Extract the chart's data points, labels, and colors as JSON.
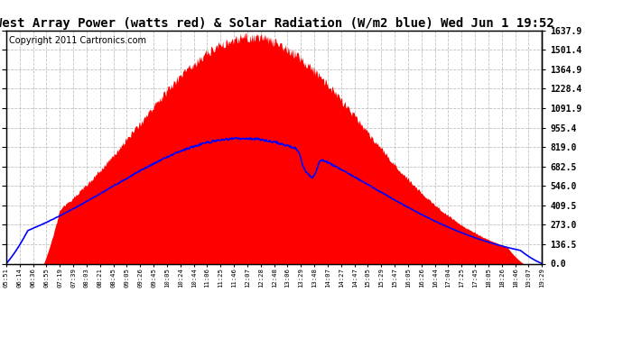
{
  "title": "West Array Power (watts red) & Solar Radiation (W/m2 blue) Wed Jun 1 19:52",
  "copyright": "Copyright 2011 Cartronics.com",
  "y_ticks": [
    0.0,
    136.5,
    273.0,
    409.5,
    546.0,
    682.5,
    819.0,
    955.4,
    1091.9,
    1228.4,
    1364.9,
    1501.4,
    1637.9
  ],
  "ymax": 1637.9,
  "x_labels": [
    "05:51",
    "06:14",
    "06:36",
    "06:55",
    "07:19",
    "07:39",
    "08:03",
    "08:21",
    "08:45",
    "09:05",
    "09:26",
    "09:45",
    "10:05",
    "10:24",
    "10:44",
    "11:06",
    "11:25",
    "11:46",
    "12:07",
    "12:28",
    "12:48",
    "13:06",
    "13:29",
    "13:48",
    "14:07",
    "14:27",
    "14:47",
    "15:05",
    "15:29",
    "15:47",
    "16:05",
    "16:26",
    "16:44",
    "17:04",
    "17:25",
    "17:45",
    "18:05",
    "18:26",
    "18:46",
    "19:07",
    "19:29"
  ],
  "background_color": "#ffffff",
  "plot_bg_color": "#ffffff",
  "red_fill_color": "#ff0000",
  "blue_line_color": "#0000ff",
  "grid_color": "#c0c0c0",
  "title_fontsize": 10,
  "copyright_fontsize": 7
}
